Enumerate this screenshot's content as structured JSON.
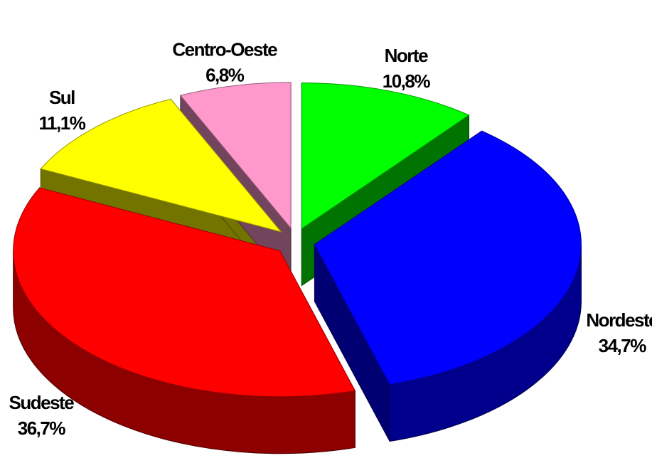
{
  "chart_data": {
    "type": "pie3d",
    "categories": [
      "Norte",
      "Nordeste",
      "Sudeste",
      "Sul",
      "Centro-Oeste"
    ],
    "values": [
      10.8,
      34.7,
      36.7,
      11.1,
      6.8
    ],
    "value_labels": [
      "10,8%",
      "34,7%",
      "36,7%",
      "11,1%",
      "6,8%"
    ],
    "colors": [
      "#00ff00",
      "#0000ff",
      "#ff0000",
      "#ffff00",
      "#ff99cc"
    ]
  }
}
